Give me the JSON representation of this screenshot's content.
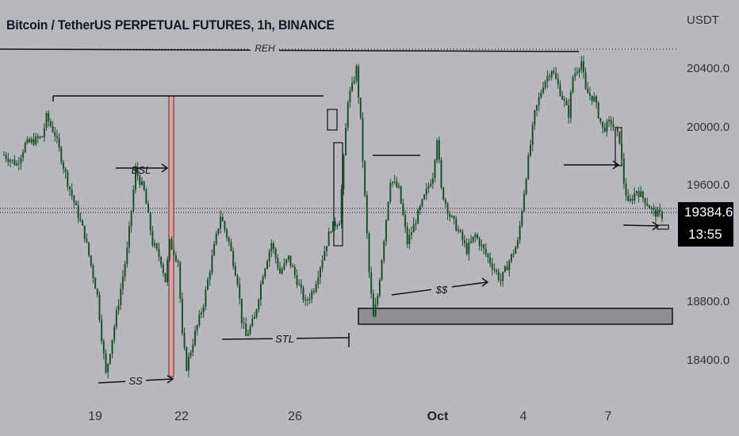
{
  "header": {
    "title": "Bitcoin / TetherUS PERPETUAL FUTURES, 1h, BINANCE",
    "unit": "USDT"
  },
  "price_label": {
    "price": "19384.6",
    "countdown": "13:55"
  },
  "colors": {
    "background": "#b7b8bd",
    "candle": "#1e4d2b",
    "drawing": "#111111",
    "highlight_zone": "#e2a0a8",
    "box_zone": "#8e8f94"
  },
  "chart_data": {
    "type": "candlestick",
    "ylim": [
      18200,
      20750
    ],
    "x_ticks": [
      "19",
      "22",
      "26",
      "Oct",
      "4",
      "7"
    ],
    "y_ticks": [
      "20400.0",
      "20000.0",
      "19600.0",
      "18800.0",
      "18400.0"
    ],
    "y_tick_values": [
      20400,
      20000,
      19600,
      18800,
      18400
    ],
    "current_price": 19384.6,
    "path": [
      [
        0,
        19780
      ],
      [
        3,
        19720
      ],
      [
        5,
        19850
      ],
      [
        9,
        19900
      ],
      [
        10,
        20030
      ],
      [
        12,
        19920
      ],
      [
        15,
        19600
      ],
      [
        19,
        19250
      ],
      [
        22,
        18850
      ],
      [
        23,
        18580
      ],
      [
        24,
        18330
      ],
      [
        27,
        18810
      ],
      [
        29,
        19150
      ],
      [
        31,
        19680
      ],
      [
        33,
        19540
      ],
      [
        35,
        19200
      ],
      [
        37,
        19080
      ],
      [
        38,
        18950
      ],
      [
        39,
        19200
      ],
      [
        41,
        19080
      ],
      [
        42,
        18580
      ],
      [
        43,
        18380
      ],
      [
        45,
        18600
      ],
      [
        47,
        18800
      ],
      [
        49,
        19100
      ],
      [
        51,
        19380
      ],
      [
        53,
        19200
      ],
      [
        55,
        18950
      ],
      [
        56,
        18690
      ],
      [
        57,
        18580
      ],
      [
        59,
        18700
      ],
      [
        61,
        19000
      ],
      [
        63,
        19200
      ],
      [
        65,
        19000
      ],
      [
        67,
        19100
      ],
      [
        69,
        18950
      ],
      [
        71,
        18800
      ],
      [
        73,
        18900
      ],
      [
        75,
        19100
      ],
      [
        77,
        19300
      ],
      [
        79,
        19350
      ],
      [
        80,
        19750
      ],
      [
        81,
        20150
      ],
      [
        82,
        20230
      ],
      [
        83,
        20350
      ],
      [
        84,
        20000
      ],
      [
        85,
        19500
      ],
      [
        86,
        19000
      ],
      [
        87,
        18700
      ],
      [
        88,
        18850
      ],
      [
        89,
        19100
      ],
      [
        91,
        19620
      ],
      [
        93,
        19550
      ],
      [
        95,
        19200
      ],
      [
        97,
        19350
      ],
      [
        99,
        19500
      ],
      [
        101,
        19650
      ],
      [
        102,
        19900
      ],
      [
        103,
        19550
      ],
      [
        105,
        19380
      ],
      [
        107,
        19280
      ],
      [
        109,
        19150
      ],
      [
        111,
        19250
      ],
      [
        113,
        19150
      ],
      [
        115,
        19050
      ],
      [
        117,
        18950
      ],
      [
        119,
        19080
      ],
      [
        121,
        19200
      ],
      [
        123,
        19650
      ],
      [
        125,
        20050
      ],
      [
        127,
        20250
      ],
      [
        129,
        20350
      ],
      [
        131,
        20200
      ],
      [
        133,
        20050
      ],
      [
        134,
        20300
      ],
      [
        136,
        20400
      ],
      [
        137,
        20200
      ],
      [
        139,
        20150
      ],
      [
        141,
        19950
      ],
      [
        143,
        20000
      ],
      [
        145,
        19880
      ],
      [
        146,
        19600
      ],
      [
        147,
        19450
      ],
      [
        149,
        19550
      ],
      [
        151,
        19480
      ],
      [
        153,
        19400
      ],
      [
        155,
        19380
      ]
    ],
    "annotations": [
      {
        "label": "REH",
        "price": 20480
      },
      {
        "label": "BSL",
        "price": 19720
      },
      {
        "label": "SS",
        "price": 18300
      },
      {
        "label": "STL",
        "price": 18520
      },
      {
        "label": "$$",
        "price": 18950
      }
    ]
  }
}
